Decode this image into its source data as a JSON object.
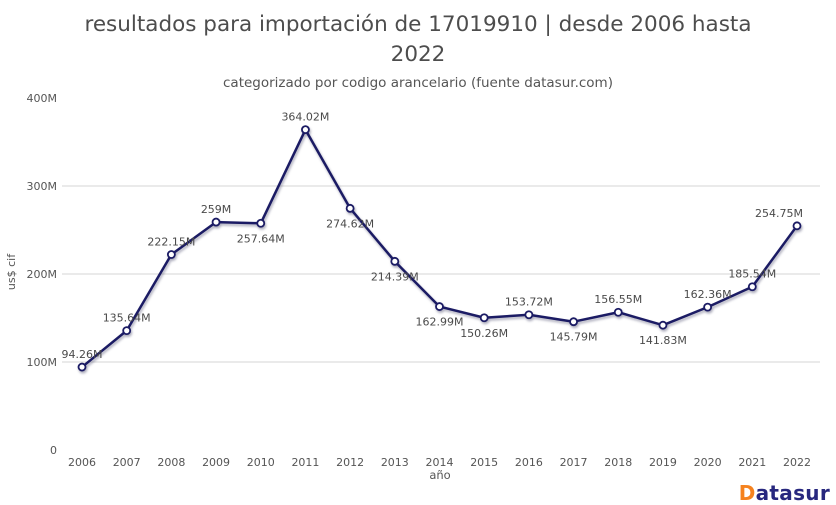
{
  "header": {
    "title_line1": "resultados para importación de 17019910 | desde 2006 hasta",
    "title_line2": "2022",
    "title_full": "resultados para importación de 17019910 | desde 2006 hasta 2022",
    "subtitle": "categorizado por codigo arancelario (fuente datasur.com)"
  },
  "chart_data": {
    "type": "line",
    "title": "resultados para importación de 17019910 | desde 2006 hasta 2022",
    "subtitle": "categorizado por codigo arancelario (fuente datasur.com)",
    "xlabel": "año",
    "ylabel": "us$ cif",
    "ylim": [
      0,
      400
    ],
    "units": "millions of US$ (cif)",
    "grid": "horizontal gridlines only",
    "legend_position": "none",
    "x": [
      2006,
      2007,
      2008,
      2009,
      2010,
      2011,
      2012,
      2013,
      2014,
      2015,
      2016,
      2017,
      2018,
      2019,
      2020,
      2021,
      2022
    ],
    "series": [
      {
        "name": "us$ cif",
        "values": [
          94.26,
          135.64,
          222.15,
          259,
          257.64,
          364.02,
          274.62,
          214.39,
          162.99,
          150.26,
          153.72,
          145.79,
          156.55,
          141.83,
          162.36,
          185.54,
          254.75
        ]
      }
    ],
    "point_labels": [
      "94.26M",
      "135.64M",
      "222.15M",
      "259M",
      "257.64M",
      "364.02M",
      "274.62M",
      "214.39M",
      "162.99M",
      "150.26M",
      "153.72M",
      "145.79M",
      "156.55M",
      "141.83M",
      "162.36M",
      "185.54M",
      "254.75M"
    ],
    "label_placements": [
      "above",
      "above",
      "above",
      "above",
      "below",
      "above",
      "below",
      "below",
      "below",
      "below",
      "above",
      "below",
      "above",
      "below",
      "above",
      "above",
      "above"
    ],
    "label_dx": [
      0,
      0,
      0,
      0,
      0,
      0,
      0,
      0,
      0,
      0,
      0,
      0,
      0,
      0,
      0,
      0,
      -18
    ],
    "y_ticks": [
      {
        "label": "400M",
        "value": 400
      },
      {
        "label": "300M",
        "value": 300
      },
      {
        "label": "200M",
        "value": 200
      },
      {
        "label": "100M",
        "value": 100
      },
      {
        "label": "0",
        "value": 0
      }
    ],
    "gridline_values": [
      300,
      200,
      100
    ],
    "line_color": "#1b1b64",
    "marker_fill": "#ffffff",
    "gridline_color": "#d6d6d6",
    "tick_color": "#555555",
    "point_label_color": "#4a4a4a"
  },
  "branding": {
    "logo_first_letter": "D",
    "logo_rest": "atasur",
    "logo_d_color": "#F5821F",
    "logo_rest_color": "#27277E"
  }
}
